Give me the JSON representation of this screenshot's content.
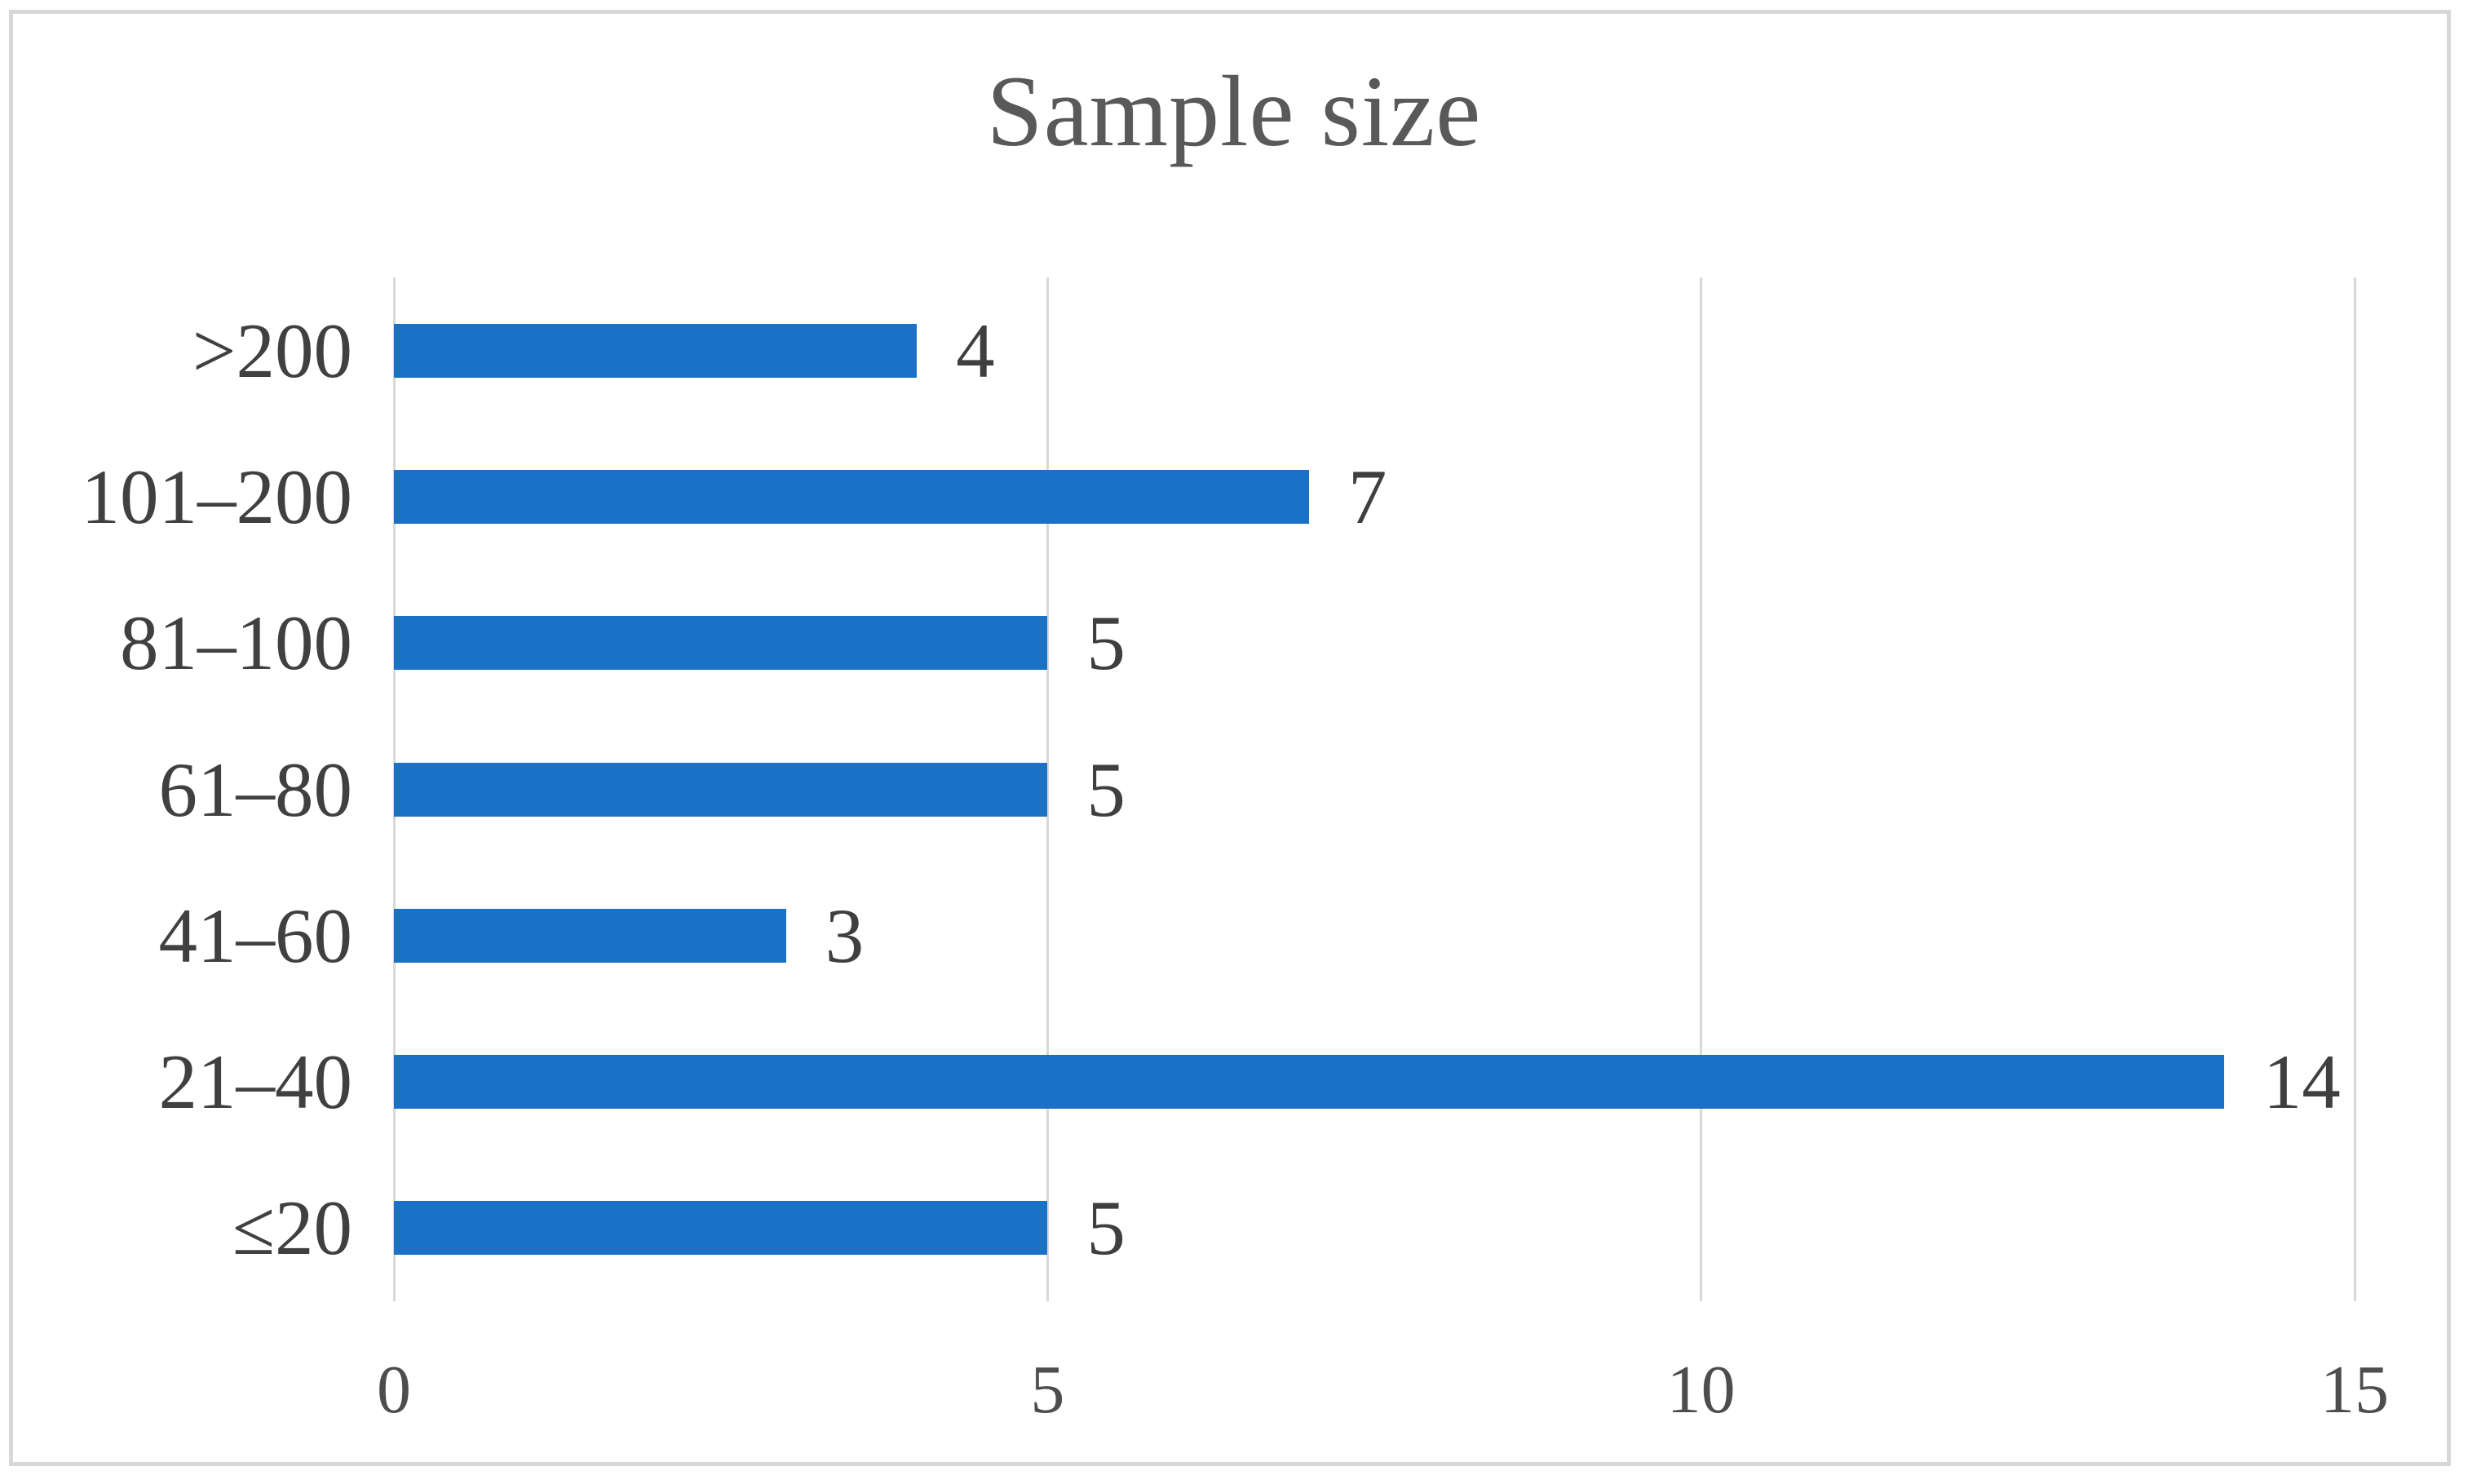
{
  "figure": {
    "title": "Sample size"
  },
  "chart_data": {
    "type": "bar",
    "orientation": "horizontal",
    "title": "Sample size",
    "categories": [
      ">200",
      "101–200",
      "81–100",
      "61–80",
      "41–60",
      "21–40",
      "≤20"
    ],
    "values": [
      4,
      7,
      5,
      5,
      3,
      14,
      5
    ],
    "data_labels": [
      4,
      7,
      5,
      5,
      3,
      14,
      5
    ],
    "xlabel": "",
    "ylabel": "",
    "xlim": [
      0,
      15
    ],
    "xticks": [
      0,
      5,
      10,
      15
    ],
    "grid": true,
    "legend": "none",
    "colors": {
      "bar": "#1b71c5",
      "gridline": "#d9d9d9",
      "figure_border": "#d8d8d8",
      "title_text": "#595959",
      "label_text": "#3f3f3f",
      "tick_text": "#4d4d4d",
      "background": "#ffffff"
    }
  }
}
